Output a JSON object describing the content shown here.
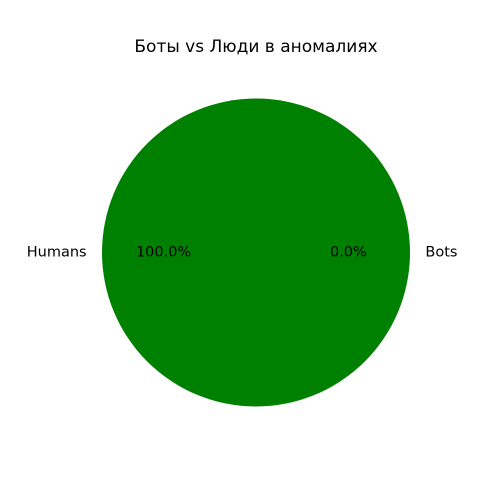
{
  "chart_data": {
    "type": "pie",
    "title": "Боты vs Люди в аномалиях",
    "categories": [
      "Bots",
      "Humans"
    ],
    "values": [
      0,
      100
    ],
    "percent_labels": [
      "0.0%",
      "100.0%"
    ],
    "colors": [
      "#ff0000",
      "#008000"
    ],
    "legend": "none"
  }
}
